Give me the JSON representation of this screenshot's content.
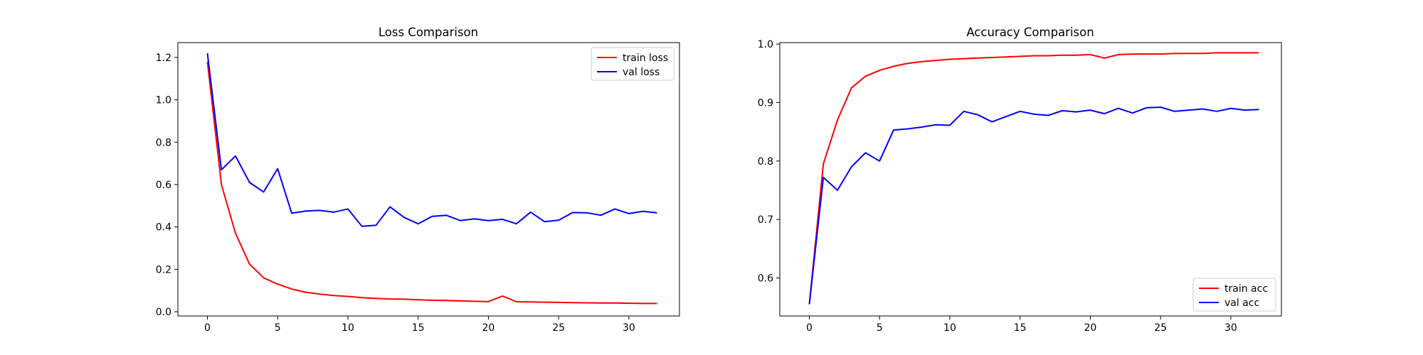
{
  "chart_data": [
    {
      "type": "line",
      "title": "Loss Comparison",
      "xlabel": "",
      "ylabel": "",
      "xlim": [
        -2.1,
        33.6
      ],
      "ylim": [
        -0.02,
        1.27
      ],
      "xticks": [
        "0",
        "5",
        "10",
        "15",
        "20",
        "25",
        "30"
      ],
      "yticks": [
        "0.0",
        "0.2",
        "0.4",
        "0.6",
        "0.8",
        "1.0",
        "1.2"
      ],
      "legend_position": "top-right",
      "grid": false,
      "x": [
        0,
        1,
        2,
        3,
        4,
        5,
        6,
        7,
        8,
        9,
        10,
        11,
        12,
        13,
        14,
        15,
        16,
        17,
        18,
        19,
        20,
        21,
        22,
        23,
        24,
        25,
        26,
        27,
        28,
        29,
        30,
        31,
        32
      ],
      "series": [
        {
          "name": "train loss",
          "color": "#ff0000",
          "values": [
            1.18,
            0.6,
            0.37,
            0.225,
            0.16,
            0.13,
            0.107,
            0.092,
            0.083,
            0.076,
            0.072,
            0.066,
            0.063,
            0.06,
            0.059,
            0.056,
            0.054,
            0.053,
            0.051,
            0.049,
            0.048,
            0.074,
            0.047,
            0.046,
            0.045,
            0.044,
            0.043,
            0.042,
            0.041,
            0.041,
            0.04,
            0.039,
            0.039
          ]
        },
        {
          "name": "val loss",
          "color": "#0000ff",
          "values": [
            1.22,
            0.67,
            0.735,
            0.61,
            0.565,
            0.675,
            0.465,
            0.475,
            0.478,
            0.47,
            0.485,
            0.403,
            0.408,
            0.495,
            0.445,
            0.415,
            0.45,
            0.455,
            0.43,
            0.438,
            0.43,
            0.436,
            0.415,
            0.47,
            0.425,
            0.432,
            0.468,
            0.467,
            0.455,
            0.485,
            0.463,
            0.474,
            0.467
          ]
        }
      ]
    },
    {
      "type": "line",
      "title": "Accuracy Comparison",
      "xlabel": "",
      "ylabel": "",
      "xlim": [
        -2.1,
        33.6
      ],
      "ylim": [
        0.535,
        1.0025
      ],
      "xticks": [
        "0",
        "5",
        "10",
        "15",
        "20",
        "25",
        "30"
      ],
      "yticks": [
        "0.6",
        "0.7",
        "0.8",
        "0.9",
        "1.0"
      ],
      "legend_position": "bottom-right",
      "grid": false,
      "x": [
        0,
        1,
        2,
        3,
        4,
        5,
        6,
        7,
        8,
        9,
        10,
        11,
        12,
        13,
        14,
        15,
        16,
        17,
        18,
        19,
        20,
        21,
        22,
        23,
        24,
        25,
        26,
        27,
        28,
        29,
        30,
        31,
        32
      ],
      "series": [
        {
          "name": "train acc",
          "color": "#ff0000",
          "values": [
            0.555,
            0.795,
            0.87,
            0.925,
            0.945,
            0.955,
            0.962,
            0.967,
            0.97,
            0.972,
            0.974,
            0.975,
            0.976,
            0.977,
            0.978,
            0.979,
            0.98,
            0.98,
            0.981,
            0.981,
            0.982,
            0.976,
            0.982,
            0.983,
            0.983,
            0.983,
            0.984,
            0.984,
            0.984,
            0.985,
            0.985,
            0.985,
            0.985
          ]
        },
        {
          "name": "val acc",
          "color": "#0000ff",
          "values": [
            0.555,
            0.772,
            0.75,
            0.79,
            0.814,
            0.8,
            0.853,
            0.855,
            0.858,
            0.862,
            0.861,
            0.885,
            0.879,
            0.867,
            0.876,
            0.885,
            0.88,
            0.878,
            0.886,
            0.884,
            0.887,
            0.881,
            0.89,
            0.882,
            0.891,
            0.892,
            0.885,
            0.887,
            0.889,
            0.885,
            0.89,
            0.887,
            0.888
          ]
        }
      ]
    }
  ]
}
